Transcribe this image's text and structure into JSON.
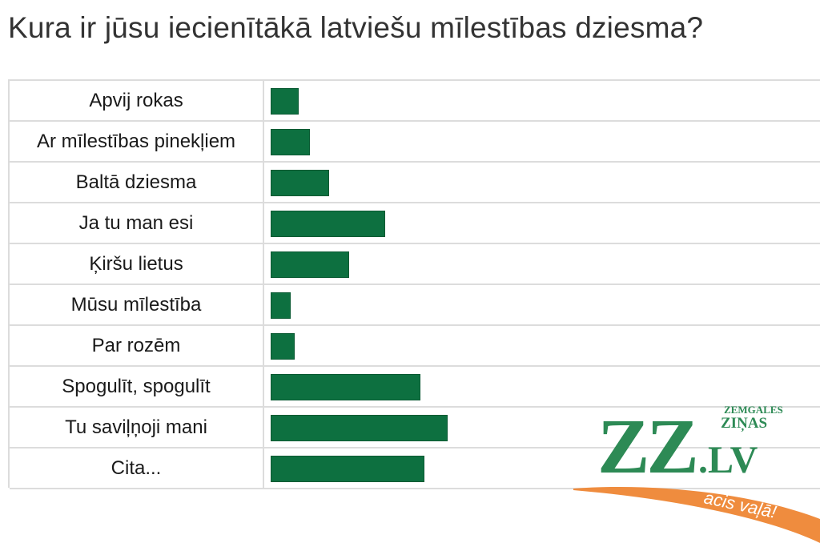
{
  "chart_data": {
    "type": "bar",
    "orientation": "horizontal",
    "title": "Kura ir jūsu iecienītākā latviešu mīlestības dziesma?",
    "categories": [
      "Apvij rokas",
      "Ar mīlestības pinekļiem",
      "Baltā dziesma",
      "Ja tu man esi",
      "Ķiršu lietus",
      "Mūsu mīlestība",
      "Par rozēm",
      "Spogulīt, spogulīt",
      "Tu saviļņoji mani",
      "Cita..."
    ],
    "values": [
      35,
      49,
      73,
      143,
      98,
      25,
      30,
      187,
      221,
      192
    ],
    "xlim": [
      0,
      690
    ],
    "grid": true,
    "bar_color": "#0d7040"
  },
  "logo": {
    "letters": "ZZ",
    "top_text_1": "ZEMGALES",
    "top_text_2": "ZIŅAS",
    "domain": ".LV",
    "slogan": "acis vaļā!",
    "green": "#2d8a55",
    "orange": "#ef8c3e"
  }
}
